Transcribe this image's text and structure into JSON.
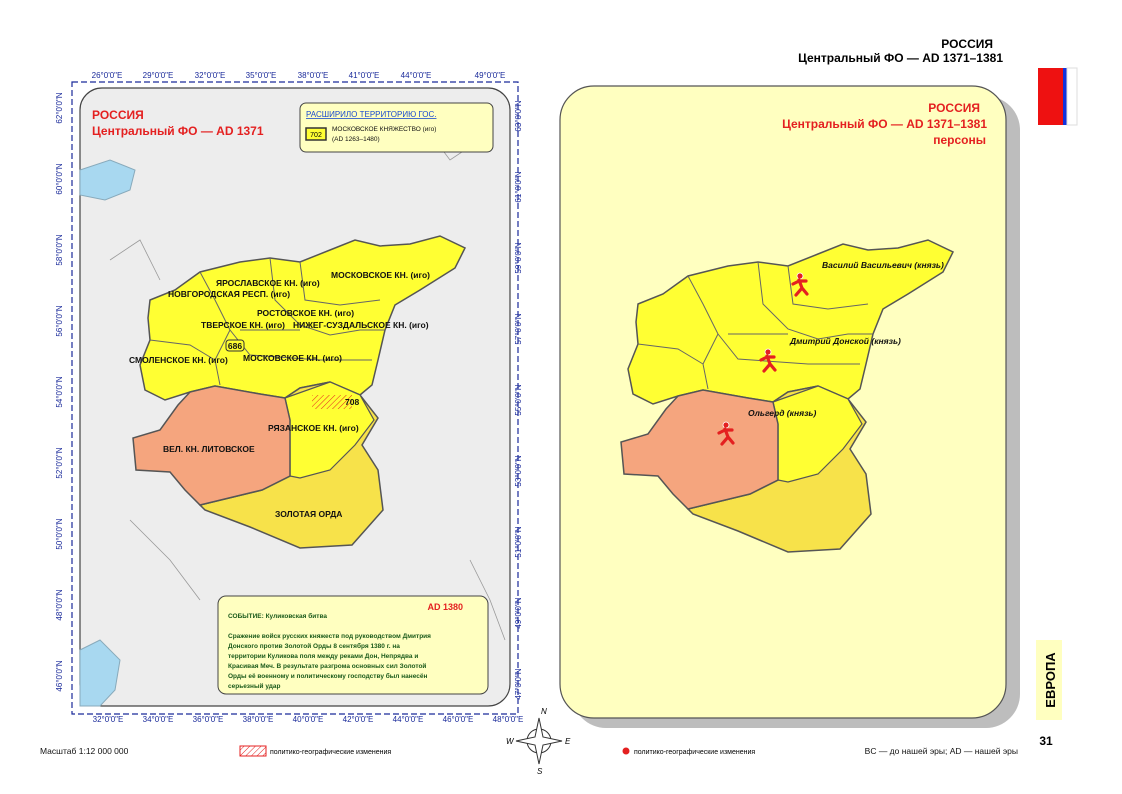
{
  "header": {
    "country": "РОССИЯ",
    "subtitle": "Центральный ФО — AD 1371–1381"
  },
  "left_map": {
    "title": "РОССИЯ",
    "subtitle": "Центральный ФО — AD 1371",
    "legend": {
      "heading": "РАСШИРИЛО ТЕРРИТОРИЮ ГОС.",
      "code": "702",
      "name": "МОСКОВСКОЕ КНЯЖЕСТВО (иго)",
      "period": "(AD 1263–1480)"
    },
    "lon_top": [
      "26°0'0\"E",
      "29°0'0\"E",
      "32°0'0\"E",
      "35°0'0\"E",
      "38°0'0\"E",
      "41°0'0\"E",
      "44°0'0\"E",
      "49°0'0\"E"
    ],
    "lon_bottom": [
      "32°0'0\"E",
      "34°0'0\"E",
      "36°0'0\"E",
      "38°0'0\"E",
      "40°0'0\"E",
      "42°0'0\"E",
      "44°0'0\"E",
      "46°0'0\"E",
      "48°0'0\"E"
    ],
    "lat_left": [
      "62°0'0\"N",
      "60°0'0\"N",
      "58°0'0\"N",
      "56°0'0\"N",
      "54°0'0\"N",
      "52°0'0\"N",
      "50°0'0\"N",
      "48°0'0\"N",
      "46°0'0\"N"
    ],
    "lat_right": [
      "63°0'0\"N",
      "61°0'0\"N",
      "59°0'0\"N",
      "57°0'0\"N",
      "55°0'0\"N",
      "53°0'0\"N",
      "51°0'0\"N",
      "49°0'0\"N",
      "47°0'0\"N"
    ],
    "regions": [
      "ЯРОСЛАВСКОЕ КН. (иго)",
      "НОВГОРОДСКАЯ РЕСП. (иго)",
      "МОСКОВСКОЕ  КН. (иго)",
      "РОСТОВСКОЕ КН. (иго)",
      "ТВЕРСКОЕ КН. (иго)",
      "НИЖЕГ-СУЗДАЛЬСКОЕ КН. (иго)",
      "686",
      "СМОЛЕНСКОЕ КН. (иго)",
      "МОСКОВСКОЕ  КН. (иго)",
      "708",
      "РЯЗАНСКОЕ КН. (иго)",
      "ВЕЛ. КН. ЛИТОВСКОЕ",
      "ЗОЛОТАЯ ОРДА"
    ],
    "event": {
      "date": "AD 1380",
      "title": "СОБЫТИЕ: Куликовская битва",
      "text": [
        "Сражение войск русских княжеств под руководством Дмитрия",
        "Донского против Золотой Орды 8 сентября 1380 г. на",
        "территории Куликова поля между реками Дон, Непрядва и",
        "Красивая Меч. В результате разгрома основных сил Золотой",
        "Орды её военному и политическому господству был нанесён",
        "серьезный удар"
      ]
    }
  },
  "right_map": {
    "title": "РОССИЯ",
    "subtitle": "Центральный ФО — AD 1371–1381",
    "caption": "персоны",
    "persons": [
      "Василий Васильевич (князь)",
      "Дмитрий Донской (князь)",
      "Ольгерд (князь)"
    ]
  },
  "compass": [
    "N",
    "E",
    "S",
    "W"
  ],
  "footer": {
    "scale": "Масштаб 1:12 000 000",
    "legend_hatch": "политико-географические изменения",
    "legend_dot": "политико-географические изменения",
    "era_note": "BC — до нашей эры; AD — нашей эры",
    "section": "ЕВРОПА",
    "page": "31"
  }
}
